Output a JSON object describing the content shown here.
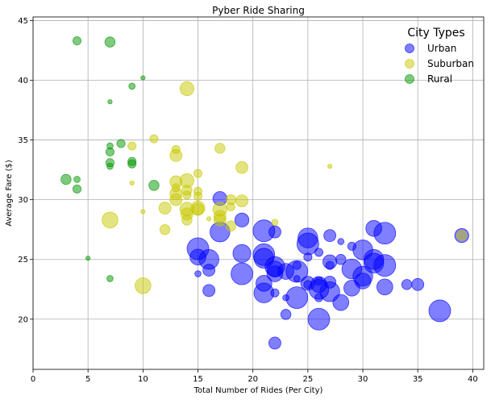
{
  "chart_data": {
    "type": "scatter",
    "title": "Pyber Ride Sharing",
    "xlabel": "Total Number of Rides (Per City)",
    "ylabel": "Average Fare ($)",
    "xlim": [
      0,
      41
    ],
    "ylim": [
      15.8,
      45.3
    ],
    "xticks": [
      "0",
      "5",
      "10",
      "15",
      "20",
      "25",
      "30",
      "35",
      "40"
    ],
    "yticks": [
      "20",
      "25",
      "30",
      "35",
      "40",
      "45"
    ],
    "grid": true,
    "legend": {
      "title": "City Types",
      "placement": "top-right"
    },
    "series": [
      {
        "name": "Urban",
        "color": "#0000ff",
        "points": [
          [
            39,
            27,
            6
          ],
          [
            37,
            20.7,
            10
          ],
          [
            35,
            22.9,
            5
          ],
          [
            34,
            22.9,
            4
          ],
          [
            32,
            27.2,
            10
          ],
          [
            32,
            24.5,
            10
          ],
          [
            32,
            22.7,
            7
          ],
          [
            31,
            25,
            9
          ],
          [
            31,
            24.7,
            9
          ],
          [
            31,
            27.6,
            7
          ],
          [
            30,
            25.8,
            9
          ],
          [
            30,
            23.6,
            9
          ],
          [
            30,
            23.2,
            7
          ],
          [
            29,
            26.1,
            3
          ],
          [
            29,
            24.2,
            9
          ],
          [
            29,
            22.6,
            7
          ],
          [
            28,
            25,
            4
          ],
          [
            28,
            26.5,
            2
          ],
          [
            28,
            21.4,
            7
          ],
          [
            27,
            27,
            5
          ],
          [
            27,
            24.8,
            6
          ],
          [
            27,
            23.1,
            5
          ],
          [
            27,
            22.3,
            9
          ],
          [
            27,
            24.5,
            3
          ],
          [
            26,
            22.5,
            9
          ],
          [
            26,
            22.9,
            7
          ],
          [
            26,
            23.2,
            3
          ],
          [
            26,
            21.8,
            3
          ],
          [
            26,
            25.6,
            3
          ],
          [
            26,
            20,
            10
          ],
          [
            25,
            26.3,
            10
          ],
          [
            25,
            26.8,
            9
          ],
          [
            25,
            25.2,
            3
          ],
          [
            25,
            22.9,
            3
          ],
          [
            25,
            23,
            6
          ],
          [
            24,
            24,
            10
          ],
          [
            24,
            21.8,
            10
          ],
          [
            24,
            24.5,
            3
          ],
          [
            24,
            23.4,
            2
          ],
          [
            23,
            24,
            7
          ],
          [
            23,
            20.4,
            4
          ],
          [
            23,
            21.8,
            2
          ],
          [
            22,
            24.4,
            9
          ],
          [
            22,
            24.2,
            7
          ],
          [
            22,
            23.8,
            7
          ],
          [
            22,
            27.3,
            5
          ],
          [
            22,
            22.2,
            3
          ],
          [
            22,
            18,
            5
          ],
          [
            21,
            27.4,
            10
          ],
          [
            21,
            25.4,
            10
          ],
          [
            21,
            22.2,
            9
          ],
          [
            21,
            23,
            7
          ],
          [
            21,
            25.1,
            9
          ],
          [
            19,
            25.5,
            8
          ],
          [
            19,
            23.8,
            10
          ],
          [
            19,
            28.3,
            6
          ],
          [
            17,
            27.3,
            9
          ],
          [
            17,
            30.1,
            6
          ],
          [
            16,
            25,
            9
          ],
          [
            16,
            24.1,
            5
          ],
          [
            16,
            22.4,
            5
          ],
          [
            15,
            25.9,
            10
          ],
          [
            15,
            25.2,
            7
          ],
          [
            15,
            23.8,
            2
          ]
        ]
      },
      {
        "name": "Suburban",
        "color": "#c8c800",
        "points": [
          [
            39,
            27,
            4
          ],
          [
            27,
            32.8,
            1
          ],
          [
            22,
            28.1,
            2
          ],
          [
            19,
            32.7,
            5
          ],
          [
            19,
            29.9,
            5
          ],
          [
            18,
            30,
            4
          ],
          [
            18,
            29.4,
            3
          ],
          [
            18,
            27.8,
            4
          ],
          [
            17,
            34.3,
            4
          ],
          [
            17,
            29.2,
            6
          ],
          [
            17,
            28.6,
            5
          ],
          [
            17,
            28.3,
            5
          ],
          [
            16,
            28.4,
            1
          ],
          [
            15,
            32.2,
            3
          ],
          [
            15,
            30.7,
            3
          ],
          [
            15,
            30.3,
            3
          ],
          [
            15,
            29.3,
            6
          ],
          [
            15,
            29.2,
            5
          ],
          [
            14,
            39.3,
            6
          ],
          [
            14,
            31.6,
            6
          ],
          [
            14,
            30.8,
            4
          ],
          [
            14,
            29.2,
            6
          ],
          [
            14,
            28.8,
            5
          ],
          [
            14,
            30.4,
            3
          ],
          [
            14,
            28.3,
            4
          ],
          [
            13,
            34.2,
            3
          ],
          [
            13,
            33.7,
            5
          ],
          [
            13,
            31.5,
            5
          ],
          [
            13,
            30.5,
            5
          ],
          [
            13,
            30,
            5
          ],
          [
            13,
            31,
            3
          ],
          [
            12,
            29.3,
            5
          ],
          [
            12,
            27.5,
            4
          ],
          [
            11,
            35.1,
            3
          ],
          [
            10,
            22.8,
            7
          ],
          [
            10,
            29,
            1
          ],
          [
            9,
            34.5,
            3
          ],
          [
            7,
            28.3,
            7
          ],
          [
            9,
            31.4,
            1
          ]
        ]
      },
      {
        "name": "Rural",
        "color": "#009600",
        "points": [
          [
            4,
            43.3,
            3
          ],
          [
            7,
            43.2,
            4
          ],
          [
            10,
            40.2,
            1
          ],
          [
            9,
            39.5,
            2
          ],
          [
            7,
            38.2,
            1
          ],
          [
            8,
            34.7,
            3
          ],
          [
            7,
            34.5,
            2
          ],
          [
            7,
            34,
            3
          ],
          [
            7,
            33.1,
            3
          ],
          [
            7,
            32.8,
            2
          ],
          [
            9,
            33.2,
            3
          ],
          [
            9,
            33,
            3
          ],
          [
            11,
            31.2,
            4
          ],
          [
            3,
            31.7,
            4
          ],
          [
            4,
            31.7,
            2
          ],
          [
            4,
            30.9,
            3
          ],
          [
            5,
            25.1,
            1
          ],
          [
            7,
            23.4,
            2
          ]
        ]
      }
    ]
  }
}
